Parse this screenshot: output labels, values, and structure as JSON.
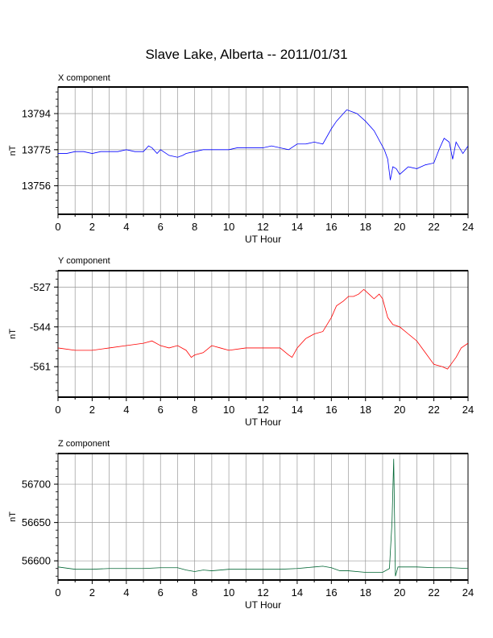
{
  "page": {
    "title": "Slave Lake, Alberta -- 2011/01/31"
  },
  "panels": [
    {
      "label": "X component",
      "ylabel": "nT",
      "xlabel": "UT Hour",
      "color": "#0000ff"
    },
    {
      "label": "Y component",
      "ylabel": "nT",
      "xlabel": "UT Hour",
      "color": "#ff0000"
    },
    {
      "label": "Z component",
      "ylabel": "nT",
      "xlabel": "UT Hour",
      "color": "#006633"
    }
  ],
  "chart_data": [
    {
      "type": "line",
      "title": "X component",
      "xlabel": "UT Hour",
      "ylabel": "nT",
      "xlim": [
        0,
        24
      ],
      "ylim": [
        13741,
        13808
      ],
      "xticks": [
        0,
        2,
        4,
        6,
        8,
        10,
        12,
        14,
        16,
        18,
        20,
        22,
        24
      ],
      "yticks": [
        13756,
        13775,
        13794
      ],
      "grid": true,
      "series": [
        {
          "x": [
            0,
            0.5,
            1,
            1.5,
            2,
            2.5,
            3,
            3.5,
            4,
            4.5,
            5,
            5.3,
            5.5,
            5.8,
            6,
            6.5,
            7,
            7.3,
            7.5,
            8,
            8.5,
            9,
            9.5,
            10,
            10.5,
            11,
            11.5,
            12,
            12.5,
            13,
            13.5,
            14,
            14.5,
            15,
            15.5,
            16,
            16.3,
            16.6,
            16.9,
            17.2,
            17.5,
            18,
            18.5,
            18.8,
            19.1,
            19.3,
            19.45,
            19.6,
            19.8,
            20,
            20.5,
            21,
            21.5,
            22,
            22.3,
            22.6,
            22.9,
            23.1,
            23.3,
            23.5,
            23.7,
            24
          ],
          "values": [
            13773,
            13773,
            13774,
            13774,
            13773,
            13774,
            13774,
            13774,
            13775,
            13774,
            13774,
            13777,
            13776,
            13773,
            13775,
            13772,
            13771,
            13772,
            13773,
            13774,
            13775,
            13775,
            13775,
            13775,
            13776,
            13776,
            13776,
            13776,
            13777,
            13776,
            13775,
            13778,
            13778,
            13779,
            13778,
            13786,
            13790,
            13793,
            13796,
            13795,
            13794,
            13790,
            13785,
            13780,
            13775,
            13770,
            13759,
            13766,
            13765,
            13762,
            13766,
            13765,
            13767,
            13768,
            13775,
            13781,
            13779,
            13770,
            13779,
            13776,
            13773,
            13777
          ]
        }
      ]
    },
    {
      "type": "line",
      "title": "Y component",
      "xlabel": "UT Hour",
      "ylabel": "nT",
      "xlim": [
        0,
        24
      ],
      "ylim": [
        -574,
        -520
      ],
      "xticks": [
        0,
        2,
        4,
        6,
        8,
        10,
        12,
        14,
        16,
        18,
        20,
        22,
        24
      ],
      "yticks": [
        -527,
        -544,
        -561
      ],
      "grid": true,
      "series": [
        {
          "x": [
            0,
            1,
            2,
            3,
            4,
            5,
            5.5,
            6,
            6.5,
            7,
            7.5,
            7.8,
            8,
            8.5,
            9,
            9.5,
            10,
            11,
            12,
            12.5,
            13,
            13.5,
            13.7,
            14,
            14.5,
            15,
            15.5,
            16,
            16.3,
            16.7,
            17,
            17.3,
            17.6,
            17.9,
            18.2,
            18.5,
            18.8,
            19,
            19.3,
            19.6,
            20,
            20.5,
            21,
            21.5,
            22,
            22.5,
            22.8,
            23,
            23.3,
            23.6,
            24
          ],
          "values": [
            -553,
            -554,
            -554,
            -553,
            -552,
            -551,
            -550,
            -552,
            -553,
            -552,
            -554,
            -557,
            -556,
            -555,
            -552,
            -553,
            -554,
            -553,
            -553,
            -553,
            -553,
            -556,
            -557,
            -553,
            -549,
            -547,
            -546,
            -540,
            -535,
            -533,
            -531,
            -531,
            -530,
            -528,
            -530,
            -532,
            -530,
            -532,
            -540,
            -543,
            -544,
            -547,
            -550,
            -555,
            -560,
            -561,
            -562,
            -560,
            -557,
            -553,
            -551
          ]
        }
      ]
    },
    {
      "type": "line",
      "title": "Z component",
      "xlabel": "UT Hour",
      "ylabel": "nT",
      "xlim": [
        0,
        24
      ],
      "ylim": [
        56575,
        56740
      ],
      "xticks": [
        0,
        2,
        4,
        6,
        8,
        10,
        12,
        14,
        16,
        18,
        20,
        22,
        24
      ],
      "yticks": [
        56600,
        56650,
        56700
      ],
      "grid": true,
      "series": [
        {
          "x": [
            0,
            1,
            2,
            3,
            4,
            5,
            6,
            7,
            7.5,
            8,
            8.5,
            9,
            10,
            11,
            12,
            13,
            14,
            15,
            15.5,
            16,
            16.5,
            17,
            18,
            19,
            19.4,
            19.55,
            19.65,
            19.75,
            19.9,
            20.5,
            21,
            22,
            23,
            24
          ],
          "values": [
            56592,
            56589,
            56589,
            56590,
            56590,
            56590,
            56591,
            56591,
            56588,
            56586,
            56588,
            56587,
            56589,
            56589,
            56589,
            56589,
            56590,
            56592,
            56593,
            56591,
            56587,
            56587,
            56585,
            56585,
            56590,
            56650,
            56733,
            56580,
            56592,
            56592,
            56592,
            56591,
            56591,
            56590
          ]
        }
      ]
    }
  ]
}
